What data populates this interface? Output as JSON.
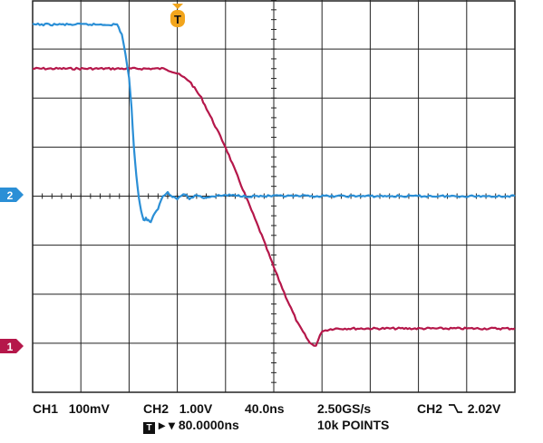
{
  "readouts": {
    "ch1_label": "CH1",
    "ch1_scale": "100mV",
    "ch2_label": "CH2",
    "ch2_scale": "1.00V",
    "timebase": "40.0ns",
    "sample_rate": "2.50GS/s",
    "record_length": "10k POINTS",
    "trigger_source": "CH2",
    "trigger_slope_symbol": "⿺",
    "trigger_level": "2.02V",
    "trigger_position_icon_text": "T",
    "trigger_position": "▸ ▾ 80.0000ns"
  },
  "markers": {
    "trigger_marker": "T",
    "ch1_marker": "1",
    "ch2_marker": "2"
  },
  "colors": {
    "ch1": "#b5174a",
    "ch2": "#2b8fd6",
    "grid": "#222222",
    "trigger": "#f2a51c"
  },
  "chart_data": {
    "type": "line",
    "xlim": [
      -80,
      320
    ],
    "ylim": [
      -4,
      4
    ],
    "x_unit": "ns",
    "grid": true,
    "divisions": {
      "x": 10,
      "y": 8
    },
    "series": [
      {
        "name": "CH1",
        "x": [
          -80,
          0,
          30,
          40,
          50,
          60,
          70,
          80,
          90,
          100,
          110,
          120,
          130,
          140,
          150,
          155,
          160,
          170,
          200,
          240,
          280,
          320
        ],
        "y": [
          2.6,
          2.6,
          2.6,
          2.5,
          2.35,
          2.0,
          1.5,
          1.0,
          0.4,
          -0.2,
          -0.8,
          -1.45,
          -2.05,
          -2.6,
          -3.0,
          -3.05,
          -2.75,
          -2.7,
          -2.7,
          -2.7,
          -2.7,
          -2.7
        ]
      },
      {
        "name": "CH2",
        "x": [
          -80,
          -10,
          -6,
          -3,
          0,
          2,
          4,
          6,
          8,
          10,
          12,
          14,
          16,
          18,
          20,
          24,
          28,
          32,
          36,
          40,
          45,
          50,
          56,
          62,
          70,
          80,
          100,
          150,
          200,
          250,
          320
        ],
        "y": [
          3.5,
          3.5,
          3.3,
          2.9,
          2.4,
          1.8,
          1.0,
          0.4,
          0.0,
          -0.3,
          -0.5,
          -0.45,
          -0.5,
          -0.52,
          -0.42,
          -0.25,
          0.0,
          0.08,
          0.0,
          -0.06,
          0.05,
          -0.05,
          0.02,
          -0.03,
          0.0,
          0.02,
          0.0,
          0.0,
          0.0,
          0.0,
          0.0
        ]
      }
    ]
  }
}
